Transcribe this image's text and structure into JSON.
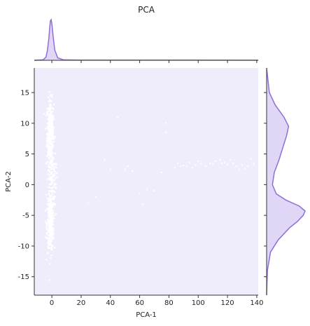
{
  "chart_data": {
    "type": "scatter",
    "title": "PCA",
    "xlabel": "PCA-1",
    "ylabel": "PCA-2",
    "xlim": [
      -12,
      141
    ],
    "ylim": [
      -18,
      19
    ],
    "xticks": [
      0,
      20,
      40,
      60,
      80,
      100,
      120,
      140
    ],
    "yticks": [
      -15,
      -10,
      -5,
      0,
      5,
      10,
      15
    ],
    "grid": false,
    "colors": {
      "plot_background": "#efecfb",
      "points": "#ffffff",
      "density_line": "#8f6ed8",
      "density_fill": "#e0d7f7"
    },
    "clusters": [
      {
        "x_center": -1,
        "x_spread": 2.0,
        "y_center": 8.5,
        "y_spread": 3.5,
        "count": 350
      },
      {
        "x_center": -1,
        "x_spread": 2.0,
        "y_center": -6.5,
        "y_spread": 3.0,
        "count": 350
      },
      {
        "x_center": 0,
        "x_spread": 2.5,
        "y_center": 1.0,
        "y_spread": 3.0,
        "count": 120
      }
    ],
    "outliers": [
      [
        36,
        4
      ],
      [
        40,
        2.5
      ],
      [
        45,
        11
      ],
      [
        52,
        3
      ],
      [
        50,
        2.5
      ],
      [
        60,
        -1.5
      ],
      [
        70,
        -1
      ],
      [
        75,
        2
      ],
      [
        78,
        10
      ],
      [
        78,
        8.5
      ],
      [
        86,
        3.5
      ],
      [
        88,
        3
      ],
      [
        92,
        3
      ],
      [
        96,
        2.8
      ],
      [
        98,
        3.2
      ],
      [
        102,
        3.4
      ],
      [
        105,
        3.0
      ],
      [
        108,
        3.5
      ],
      [
        110,
        3.4
      ],
      [
        112,
        3.8
      ],
      [
        115,
        4.0
      ],
      [
        116,
        3.5
      ],
      [
        118,
        3.6
      ],
      [
        120,
        3.3
      ],
      [
        122,
        4.0
      ],
      [
        124,
        3.5
      ],
      [
        126,
        3.0
      ],
      [
        128,
        2.5
      ],
      [
        130,
        3.2
      ],
      [
        132,
        2.6
      ],
      [
        134,
        3.0
      ],
      [
        136,
        4.2
      ],
      [
        138,
        3.4
      ],
      [
        100,
        3.8
      ],
      [
        94,
        3.6
      ],
      [
        90,
        3.1
      ],
      [
        84,
        2.8
      ],
      [
        30,
        -2
      ],
      [
        25,
        -3
      ],
      [
        62,
        -3.2
      ],
      [
        65,
        -0.8
      ],
      [
        55,
        2.2
      ]
    ],
    "marginal_x_density": {
      "x": [
        -12,
        -6,
        -4,
        -3,
        -2,
        -1.5,
        -1,
        -0.5,
        0,
        1,
        2,
        4,
        8,
        20,
        60,
        100,
        141
      ],
      "density": [
        0,
        0.01,
        0.08,
        0.25,
        0.55,
        0.8,
        0.97,
        1.0,
        0.9,
        0.55,
        0.25,
        0.06,
        0.01,
        0.005,
        0.003,
        0.004,
        0.002
      ]
    },
    "marginal_y_density": {
      "y": [
        -18,
        -14,
        -11,
        -9,
        -7,
        -6,
        -5,
        -4.3,
        -3.5,
        -2.5,
        -1.5,
        0,
        2,
        4,
        6,
        8,
        9.5,
        11,
        13,
        15,
        19
      ],
      "density": [
        0,
        0.02,
        0.1,
        0.3,
        0.6,
        0.8,
        0.95,
        1.0,
        0.85,
        0.5,
        0.25,
        0.15,
        0.2,
        0.32,
        0.42,
        0.52,
        0.57,
        0.45,
        0.22,
        0.07,
        0
      ]
    }
  }
}
